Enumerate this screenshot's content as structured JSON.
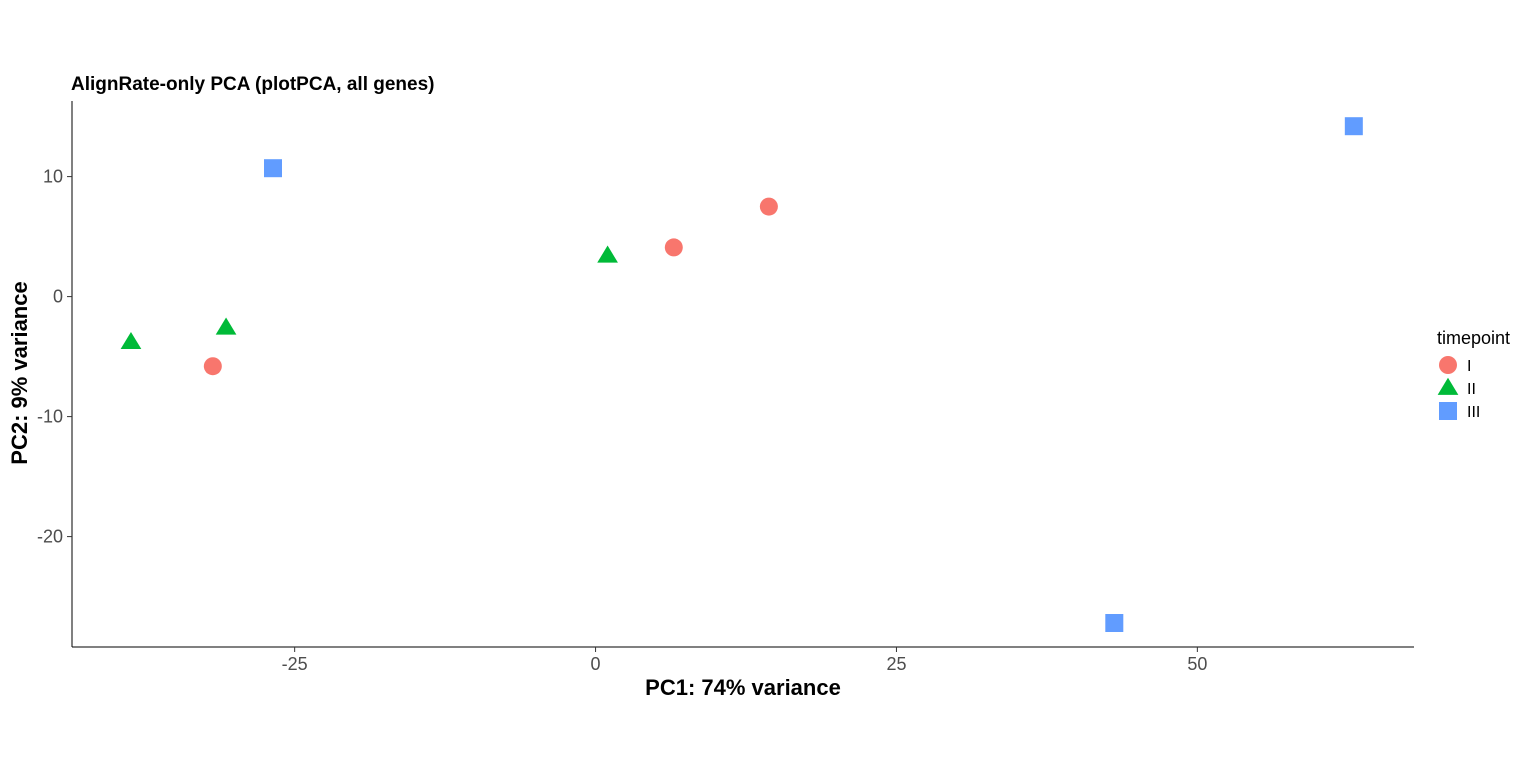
{
  "chart_data": {
    "type": "scatter",
    "title": "AlignRate-only PCA (plotPCA, all genes)",
    "xlabel": "PC1: 74% variance",
    "ylabel": "PC2: 9% variance",
    "xlim": [
      -43.5,
      68
    ],
    "ylim": [
      -29.2,
      16.3
    ],
    "xticks": [
      -25,
      0,
      25,
      50
    ],
    "xtick_labels": [
      "-25",
      "0",
      "25",
      "50"
    ],
    "yticks": [
      -20,
      -10,
      0,
      10
    ],
    "ytick_labels": [
      "-20",
      "-10",
      "0",
      "10"
    ],
    "grid": false,
    "legend": {
      "title": "timepoint",
      "position": "right"
    },
    "series": [
      {
        "name": "I",
        "shape": "circle",
        "color": "#F8766D",
        "points": [
          [
            -31.8,
            -5.8
          ],
          [
            6.5,
            4.1
          ],
          [
            14.4,
            7.5
          ]
        ]
      },
      {
        "name": "II",
        "shape": "triangle",
        "color": "#00BA38",
        "points": [
          [
            -38.6,
            -3.8
          ],
          [
            -30.7,
            -2.6
          ],
          [
            1.0,
            3.4
          ]
        ]
      },
      {
        "name": "III",
        "shape": "square",
        "color": "#619CFF",
        "points": [
          [
            -26.8,
            10.7
          ],
          [
            43.1,
            -27.2
          ],
          [
            63.0,
            14.2
          ]
        ]
      }
    ]
  }
}
